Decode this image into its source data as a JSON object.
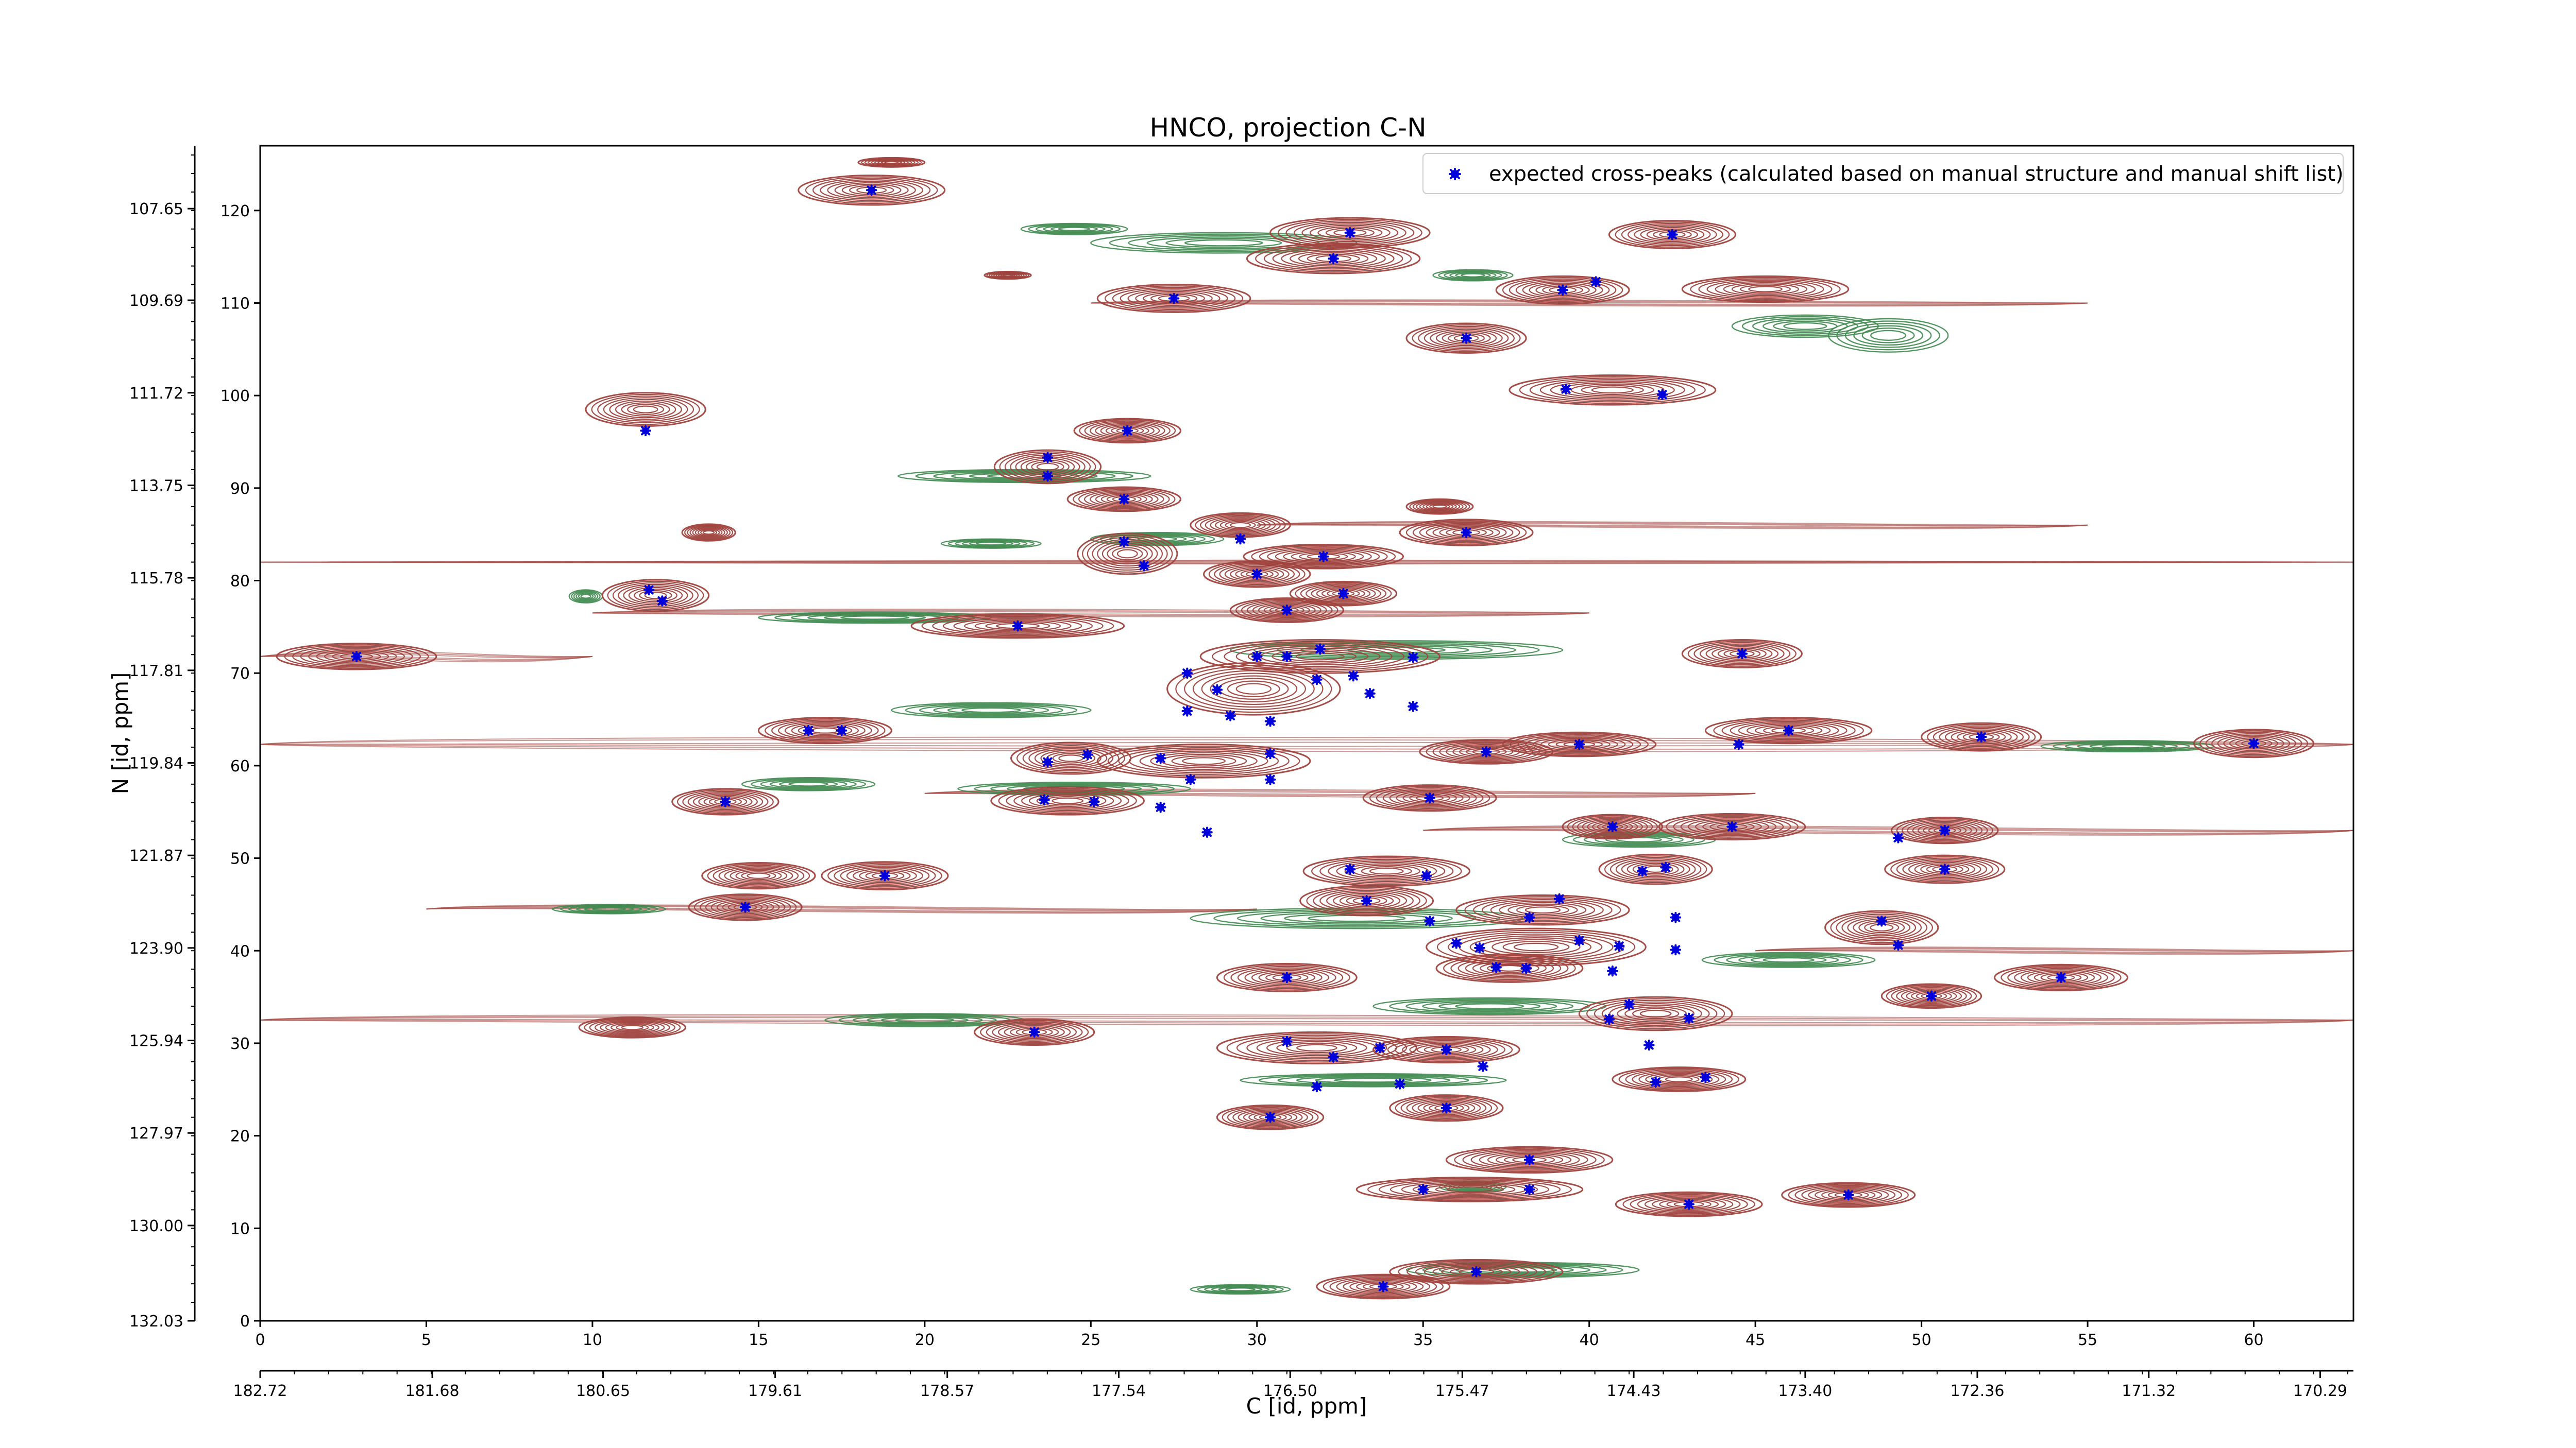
{
  "chart_data": {
    "type": "scatter",
    "title": "HNCO, projection C-N",
    "xlabel": "C [id, ppm]",
    "ylabel": "N [id, ppm]",
    "x_index_range": [
      0,
      63
    ],
    "y_index_range": [
      0,
      127
    ],
    "x_index_ticks": [
      0,
      5,
      10,
      15,
      20,
      25,
      30,
      35,
      40,
      45,
      50,
      55,
      60
    ],
    "y_index_ticks": [
      0,
      10,
      20,
      30,
      40,
      50,
      60,
      70,
      80,
      90,
      100,
      110,
      120
    ],
    "x_ppm_ticks": [
      {
        "index": 0,
        "label": "182.72"
      },
      {
        "index": 5.18,
        "label": "181.68"
      },
      {
        "index": 10.32,
        "label": "180.65"
      },
      {
        "index": 15.5,
        "label": "179.61"
      },
      {
        "index": 20.68,
        "label": "178.57"
      },
      {
        "index": 25.84,
        "label": "177.54"
      },
      {
        "index": 31,
        "label": "176.50"
      },
      {
        "index": 36.18,
        "label": "175.47"
      },
      {
        "index": 41.34,
        "label": "174.43"
      },
      {
        "index": 46.5,
        "label": "173.40"
      },
      {
        "index": 51.68,
        "label": "172.36"
      },
      {
        "index": 56.84,
        "label": "171.32"
      },
      {
        "index": 62,
        "label": "170.29"
      }
    ],
    "y_ppm_ticks": [
      {
        "index": 120.2,
        "label": "107.65"
      },
      {
        "index": 110.3,
        "label": "109.69"
      },
      {
        "index": 100.3,
        "label": "111.72"
      },
      {
        "index": 90.3,
        "label": "113.75"
      },
      {
        "index": 80.3,
        "label": "115.78"
      },
      {
        "index": 70.3,
        "label": "117.81"
      },
      {
        "index": 60.3,
        "label": "119.84"
      },
      {
        "index": 50.3,
        "label": "121.87"
      },
      {
        "index": 40.3,
        "label": "123.90"
      },
      {
        "index": 30.3,
        "label": "125.94"
      },
      {
        "index": 20.3,
        "label": "127.97"
      },
      {
        "index": 10.3,
        "label": "130.00"
      },
      {
        "index": 0,
        "label": "132.03"
      }
    ],
    "legend": {
      "placement": "top-right",
      "label": "expected cross-peaks (calculated based on manual structure and manual shift list)"
    },
    "colors": {
      "positive_contours": "#a0433e",
      "negative_contours": "#3f8a4f",
      "peaks": "#0000dd"
    },
    "peaks": [
      [
        18.4,
        122.2
      ],
      [
        32.8,
        117.6
      ],
      [
        32.3,
        114.8
      ],
      [
        42.5,
        117.4
      ],
      [
        27.5,
        110.5
      ],
      [
        39.2,
        111.4
      ],
      [
        40.2,
        112.3
      ],
      [
        36.3,
        106.2
      ],
      [
        39.3,
        100.7
      ],
      [
        42.2,
        100.1
      ],
      [
        11.6,
        96.2
      ],
      [
        26.1,
        96.2
      ],
      [
        23.7,
        93.3
      ],
      [
        23.7,
        91.3
      ],
      [
        26.0,
        88.8
      ],
      [
        36.3,
        85.2
      ],
      [
        26.0,
        84.2
      ],
      [
        29.5,
        84.5
      ],
      [
        26.6,
        81.6
      ],
      [
        32.0,
        82.6
      ],
      [
        30.0,
        80.7
      ],
      [
        11.7,
        79.0
      ],
      [
        12.1,
        77.8
      ],
      [
        32.6,
        78.6
      ],
      [
        30.9,
        76.8
      ],
      [
        22.8,
        75.1
      ],
      [
        2.9,
        71.8
      ],
      [
        30.0,
        71.8
      ],
      [
        30.9,
        71.8
      ],
      [
        31.9,
        72.6
      ],
      [
        34.7,
        71.7
      ],
      [
        44.6,
        72.1
      ],
      [
        27.9,
        70.0
      ],
      [
        32.9,
        69.7
      ],
      [
        31.8,
        69.3
      ],
      [
        28.8,
        68.2
      ],
      [
        33.4,
        67.8
      ],
      [
        34.7,
        66.4
      ],
      [
        27.9,
        65.9
      ],
      [
        29.2,
        65.4
      ],
      [
        30.4,
        64.8
      ],
      [
        16.5,
        63.8
      ],
      [
        17.5,
        63.8
      ],
      [
        46.0,
        63.8
      ],
      [
        23.7,
        60.4
      ],
      [
        24.9,
        61.2
      ],
      [
        27.1,
        60.8
      ],
      [
        30.4,
        61.3
      ],
      [
        36.9,
        61.5
      ],
      [
        39.7,
        62.3
      ],
      [
        44.5,
        62.3
      ],
      [
        51.8,
        63.1
      ],
      [
        60.0,
        62.4
      ],
      [
        28.0,
        58.5
      ],
      [
        30.4,
        58.5
      ],
      [
        14.0,
        56.1
      ],
      [
        23.6,
        56.3
      ],
      [
        25.1,
        56.1
      ],
      [
        27.1,
        55.5
      ],
      [
        35.2,
        56.5
      ],
      [
        40.7,
        53.4
      ],
      [
        44.3,
        53.4
      ],
      [
        50.7,
        53.0
      ],
      [
        28.5,
        52.8
      ],
      [
        49.3,
        52.2
      ],
      [
        32.8,
        48.8
      ],
      [
        35.1,
        48.1
      ],
      [
        41.6,
        48.6
      ],
      [
        42.3,
        49.0
      ],
      [
        18.8,
        48.1
      ],
      [
        50.7,
        48.8
      ],
      [
        33.3,
        45.4
      ],
      [
        14.6,
        44.7
      ],
      [
        39.1,
        45.6
      ],
      [
        35.2,
        43.2
      ],
      [
        38.2,
        43.6
      ],
      [
        42.6,
        43.6
      ],
      [
        48.8,
        43.2
      ],
      [
        36.0,
        40.8
      ],
      [
        36.7,
        40.3
      ],
      [
        39.7,
        41.1
      ],
      [
        40.9,
        40.5
      ],
      [
        42.6,
        40.1
      ],
      [
        49.3,
        40.6
      ],
      [
        37.2,
        38.2
      ],
      [
        38.1,
        38.1
      ],
      [
        40.7,
        37.8
      ],
      [
        30.9,
        37.1
      ],
      [
        54.2,
        37.1
      ],
      [
        50.3,
        35.1
      ],
      [
        41.2,
        34.2
      ],
      [
        40.6,
        32.6
      ],
      [
        43.0,
        32.7
      ],
      [
        23.3,
        31.2
      ],
      [
        30.9,
        30.2
      ],
      [
        41.8,
        29.8
      ],
      [
        33.7,
        29.5
      ],
      [
        35.7,
        29.3
      ],
      [
        32.3,
        28.5
      ],
      [
        36.8,
        27.5
      ],
      [
        31.8,
        25.3
      ],
      [
        34.3,
        25.6
      ],
      [
        42.0,
        25.8
      ],
      [
        43.5,
        26.3
      ],
      [
        35.7,
        23.0
      ],
      [
        30.4,
        22.0
      ],
      [
        38.2,
        17.4
      ],
      [
        35.0,
        14.2
      ],
      [
        38.2,
        14.2
      ],
      [
        43.0,
        12.6
      ],
      [
        47.8,
        13.6
      ],
      [
        36.6,
        5.3
      ],
      [
        33.8,
        3.7
      ]
    ],
    "contours_positive": [
      [
        18.4,
        122.2,
        2.2,
        1.6
      ],
      [
        32.8,
        117.6,
        2.4,
        1.6
      ],
      [
        32.3,
        114.8,
        2.6,
        1.6
      ],
      [
        42.5,
        117.4,
        1.9,
        1.5
      ],
      [
        27.5,
        110.5,
        2.3,
        1.5
      ],
      [
        39.2,
        111.4,
        2.0,
        1.5
      ],
      [
        36.3,
        106.2,
        1.8,
        1.6
      ],
      [
        40.7,
        100.6,
        3.1,
        1.6
      ],
      [
        11.6,
        98.5,
        1.8,
        1.8
      ],
      [
        26.1,
        96.2,
        1.6,
        1.3
      ],
      [
        23.7,
        92.3,
        1.6,
        1.8
      ],
      [
        26.0,
        88.8,
        1.7,
        1.3
      ],
      [
        36.3,
        85.2,
        2.0,
        1.4
      ],
      [
        29.5,
        86.0,
        1.5,
        1.3
      ],
      [
        26.1,
        82.9,
        1.5,
        2.2
      ],
      [
        32.0,
        82.6,
        2.4,
        1.3
      ],
      [
        30.0,
        80.7,
        1.6,
        1.4
      ],
      [
        11.9,
        78.4,
        1.6,
        1.7
      ],
      [
        32.6,
        78.6,
        1.6,
        1.3
      ],
      [
        30.9,
        76.8,
        1.7,
        1.3
      ],
      [
        22.8,
        75.1,
        3.2,
        1.3
      ],
      [
        2.9,
        71.8,
        2.4,
        1.4
      ],
      [
        31.9,
        71.8,
        3.6,
        1.8
      ],
      [
        44.6,
        72.1,
        1.8,
        1.5
      ],
      [
        29.9,
        68.3,
        2.6,
        2.8
      ],
      [
        17.0,
        63.8,
        2.0,
        1.4
      ],
      [
        46.0,
        63.8,
        2.5,
        1.4
      ],
      [
        24.4,
        60.8,
        1.8,
        1.7
      ],
      [
        28.4,
        60.5,
        3.2,
        1.8
      ],
      [
        36.9,
        61.5,
        2.0,
        1.3
      ],
      [
        39.7,
        62.3,
        2.3,
        1.3
      ],
      [
        51.8,
        63.1,
        1.8,
        1.5
      ],
      [
        60.0,
        62.4,
        1.8,
        1.5
      ],
      [
        14.0,
        56.1,
        1.6,
        1.4
      ],
      [
        24.3,
        56.2,
        2.3,
        1.5
      ],
      [
        35.2,
        56.5,
        2.0,
        1.4
      ],
      [
        40.7,
        53.4,
        1.5,
        1.3
      ],
      [
        44.3,
        53.4,
        2.2,
        1.4
      ],
      [
        50.7,
        53.0,
        1.6,
        1.4
      ],
      [
        33.9,
        48.6,
        2.5,
        1.6
      ],
      [
        18.8,
        48.1,
        1.9,
        1.5
      ],
      [
        15.0,
        48.1,
        1.7,
        1.4
      ],
      [
        42.0,
        48.8,
        1.7,
        1.6
      ],
      [
        50.7,
        48.8,
        1.8,
        1.5
      ],
      [
        33.3,
        45.4,
        2.0,
        1.6
      ],
      [
        14.6,
        44.7,
        1.7,
        1.4
      ],
      [
        38.6,
        44.4,
        2.6,
        1.6
      ],
      [
        48.8,
        42.5,
        1.7,
        1.8
      ],
      [
        38.4,
        40.4,
        3.3,
        2.0
      ],
      [
        37.6,
        38.1,
        2.2,
        1.5
      ],
      [
        30.9,
        37.1,
        2.1,
        1.5
      ],
      [
        54.2,
        37.1,
        2.0,
        1.4
      ],
      [
        50.3,
        35.1,
        1.5,
        1.3
      ],
      [
        42.0,
        33.2,
        2.3,
        1.8
      ],
      [
        23.3,
        31.2,
        1.8,
        1.4
      ],
      [
        31.8,
        29.5,
        3.0,
        1.7
      ],
      [
        35.7,
        29.3,
        2.2,
        1.4
      ],
      [
        42.7,
        26.1,
        2.0,
        1.3
      ],
      [
        35.7,
        23.0,
        1.7,
        1.4
      ],
      [
        30.4,
        22.0,
        1.6,
        1.3
      ],
      [
        38.2,
        17.4,
        2.5,
        1.4
      ],
      [
        36.4,
        14.2,
        3.4,
        1.3
      ],
      [
        43.0,
        12.6,
        2.2,
        1.3
      ],
      [
        47.8,
        13.6,
        2.0,
        1.3
      ],
      [
        36.6,
        5.3,
        2.6,
        1.3
      ],
      [
        33.8,
        3.7,
        2.0,
        1.3
      ],
      [
        11.2,
        31.7,
        1.6,
        1.1
      ],
      [
        13.5,
        85.2,
        0.8,
        0.9
      ],
      [
        35.5,
        88.0,
        1.0,
        0.8
      ],
      [
        45.3,
        111.5,
        2.5,
        1.4
      ],
      [
        19.0,
        125.2,
        1.0,
        0.5
      ],
      [
        22.5,
        113.0,
        0.7,
        0.4
      ]
    ],
    "contours_negative": [
      [
        29.0,
        116.5,
        4.0,
        1.1
      ],
      [
        24.5,
        118.0,
        1.6,
        0.6
      ],
      [
        46.5,
        107.5,
        2.2,
        1.2
      ],
      [
        49.0,
        106.5,
        1.8,
        1.8
      ],
      [
        36.5,
        113.0,
        1.2,
        0.6
      ],
      [
        23.0,
        91.3,
        3.8,
        0.7
      ],
      [
        18.5,
        76.0,
        3.5,
        0.6
      ],
      [
        9.8,
        78.3,
        0.5,
        0.7
      ],
      [
        34.2,
        72.5,
        5.0,
        1.0
      ],
      [
        22.0,
        66.0,
        3.0,
        0.8
      ],
      [
        56.2,
        62.1,
        2.6,
        0.6
      ],
      [
        24.5,
        57.5,
        3.5,
        0.7
      ],
      [
        41.5,
        52.0,
        2.3,
        0.8
      ],
      [
        10.5,
        44.5,
        1.7,
        0.5
      ],
      [
        33.0,
        43.5,
        5.0,
        1.1
      ],
      [
        46.0,
        39.0,
        2.6,
        0.8
      ],
      [
        37.0,
        34.0,
        3.5,
        0.9
      ],
      [
        20.0,
        32.5,
        3.0,
        0.7
      ],
      [
        33.5,
        26.0,
        4.0,
        0.7
      ],
      [
        38.0,
        5.5,
        3.5,
        0.8
      ],
      [
        29.5,
        3.4,
        1.5,
        0.5
      ],
      [
        36.5,
        14.5,
        1.0,
        0.6
      ],
      [
        27.0,
        84.5,
        2.0,
        0.7
      ],
      [
        22.0,
        84.0,
        1.5,
        0.5
      ],
      [
        16.5,
        58.0,
        2.0,
        0.7
      ]
    ],
    "horizontal_streaks": [
      [
        0,
        63,
        62.3,
        1.0
      ],
      [
        0,
        63,
        32.5,
        0.7
      ],
      [
        0,
        10,
        71.8,
        0.6
      ],
      [
        10,
        40,
        76.5,
        0.5
      ],
      [
        20,
        45,
        57.0,
        0.5
      ],
      [
        35,
        63,
        53.0,
        0.5
      ],
      [
        0,
        63,
        82.0,
        0.3
      ],
      [
        30,
        55,
        86.0,
        0.4
      ],
      [
        5,
        30,
        44.5,
        0.4
      ],
      [
        25,
        55,
        110.0,
        0.4
      ],
      [
        45,
        63,
        40.0,
        0.4
      ]
    ]
  }
}
